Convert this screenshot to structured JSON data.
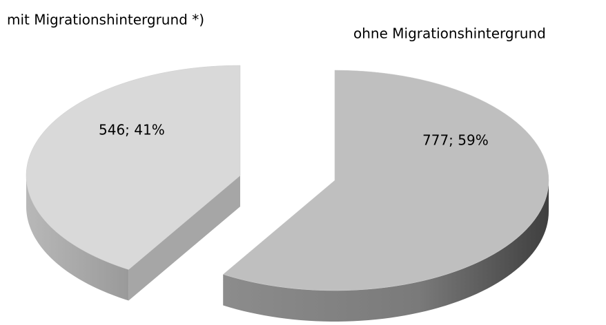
{
  "chart_data": {
    "type": "pie3d",
    "categories": [
      "mit Migrationshintergrund *)",
      "ohne Migrationshintergrund"
    ],
    "values": [
      546,
      777
    ],
    "value_labels": [
      "546; 41%",
      "777; 59%"
    ],
    "colors": [
      "#d9d9d9",
      "#bfbfbf"
    ]
  }
}
